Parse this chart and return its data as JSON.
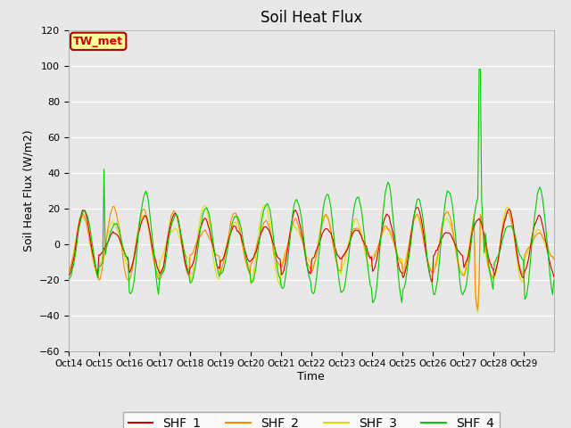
{
  "title": "Soil Heat Flux",
  "ylabel": "Soil Heat Flux (W/m2)",
  "xlabel": "Time",
  "annotation": "TW_met",
  "ylim": [
    -60,
    120
  ],
  "yticks": [
    -60,
    -40,
    -20,
    0,
    20,
    40,
    60,
    80,
    100,
    120
  ],
  "xtick_labels": [
    "Oct 14",
    "Oct 15",
    "Oct 16",
    "Oct 17",
    "Oct 18",
    "Oct 19",
    "Oct 20",
    "Oct 21",
    "Oct 22",
    "Oct 23",
    "Oct 24",
    "Oct 25",
    "Oct 26",
    "Oct 27",
    "Oct 28",
    "Oct 29"
  ],
  "line_colors": [
    "#cc0000",
    "#ff8800",
    "#dddd00",
    "#00cc00"
  ],
  "line_labels": [
    "SHF_1",
    "SHF_2",
    "SHF_3",
    "SHF_4"
  ],
  "linewidth": 0.8,
  "fig_bg_color": "#e8e8e8",
  "plot_bg_color": "#e8e8e8",
  "title_fontsize": 12,
  "legend_fontsize": 10,
  "annotation_facecolor": "#ffff99",
  "annotation_edgecolor": "#aa0000",
  "n_points_per_day": 24,
  "n_days": 16
}
